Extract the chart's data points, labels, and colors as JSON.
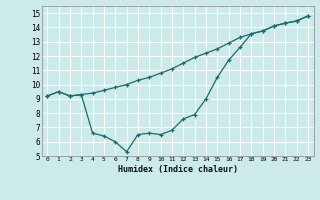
{
  "xlabel": "Humidex (Indice chaleur)",
  "bg_color": "#cceaea",
  "grid_color": "#ffffff",
  "line_color": "#1a6b6b",
  "xlim": [
    -0.5,
    23.5
  ],
  "ylim": [
    5,
    15.5
  ],
  "yticks": [
    5,
    6,
    7,
    8,
    9,
    10,
    11,
    12,
    13,
    14,
    15
  ],
  "xticks": [
    0,
    1,
    2,
    3,
    4,
    5,
    6,
    7,
    8,
    9,
    10,
    11,
    12,
    13,
    14,
    15,
    16,
    17,
    18,
    19,
    20,
    21,
    22,
    23
  ],
  "series1_x": [
    0,
    1,
    2,
    3,
    4,
    5,
    6,
    7,
    8,
    9,
    10,
    11,
    12,
    13,
    14,
    15,
    16,
    17,
    18,
    19,
    20,
    21,
    22,
    23
  ],
  "series1_y": [
    9.2,
    9.5,
    9.2,
    9.3,
    9.4,
    9.6,
    9.8,
    10.0,
    10.3,
    10.5,
    10.8,
    11.1,
    11.5,
    11.9,
    12.2,
    12.5,
    12.9,
    13.3,
    13.55,
    13.75,
    14.1,
    14.3,
    14.45,
    14.8
  ],
  "series2_x": [
    0,
    1,
    2,
    3,
    4,
    5,
    6,
    7,
    8,
    9,
    10,
    11,
    12,
    13,
    14,
    15,
    16,
    17,
    18,
    19,
    20,
    21,
    22,
    23
  ],
  "series2_y": [
    9.2,
    9.5,
    9.2,
    9.3,
    6.6,
    6.4,
    6.0,
    5.3,
    6.5,
    6.6,
    6.5,
    6.8,
    7.6,
    7.9,
    9.0,
    10.5,
    11.7,
    12.6,
    13.55,
    13.75,
    14.1,
    14.3,
    14.45,
    14.8
  ]
}
